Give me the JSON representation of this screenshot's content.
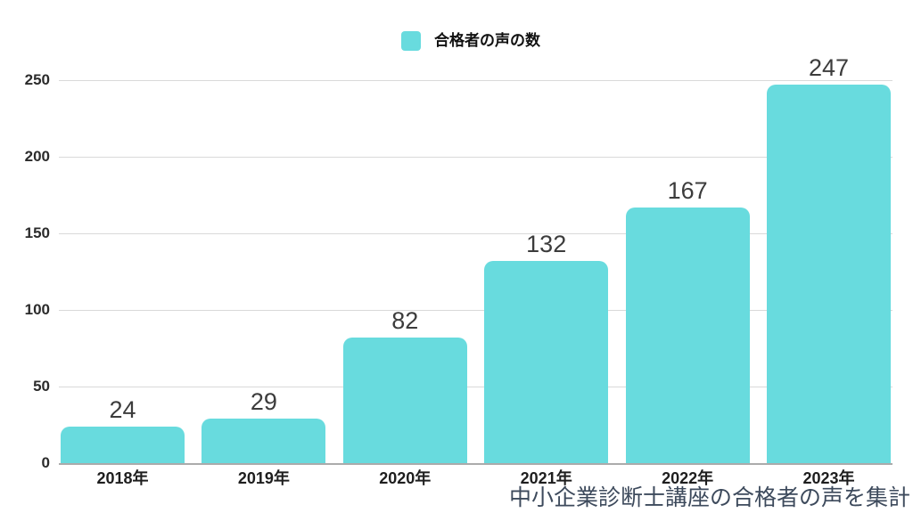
{
  "legend": {
    "label": "合格者の声の数"
  },
  "caption": "中小企業診断士講座の合格者の声を集計",
  "colors": {
    "bar": "#68dbde",
    "gridline": "#d9d9d9",
    "baseline": "#ababab",
    "value_label": "#3c3c3c",
    "axis_label": "#1e1e1e",
    "caption": "#3d4a5c"
  },
  "chart_data": {
    "type": "bar",
    "categories": [
      "2018年",
      "2019年",
      "2020年",
      "2021年",
      "2022年",
      "2023年"
    ],
    "values": [
      24,
      29,
      82,
      132,
      167,
      247
    ],
    "series_name": "合格者の声の数",
    "title": "",
    "xlabel": "",
    "ylabel": "",
    "ylim": [
      0,
      250
    ],
    "yticks": [
      0,
      50,
      100,
      150,
      200,
      250
    ],
    "grid": true,
    "value_labels": true,
    "legend_position": "top-center",
    "bar_color": "#68dbde"
  }
}
